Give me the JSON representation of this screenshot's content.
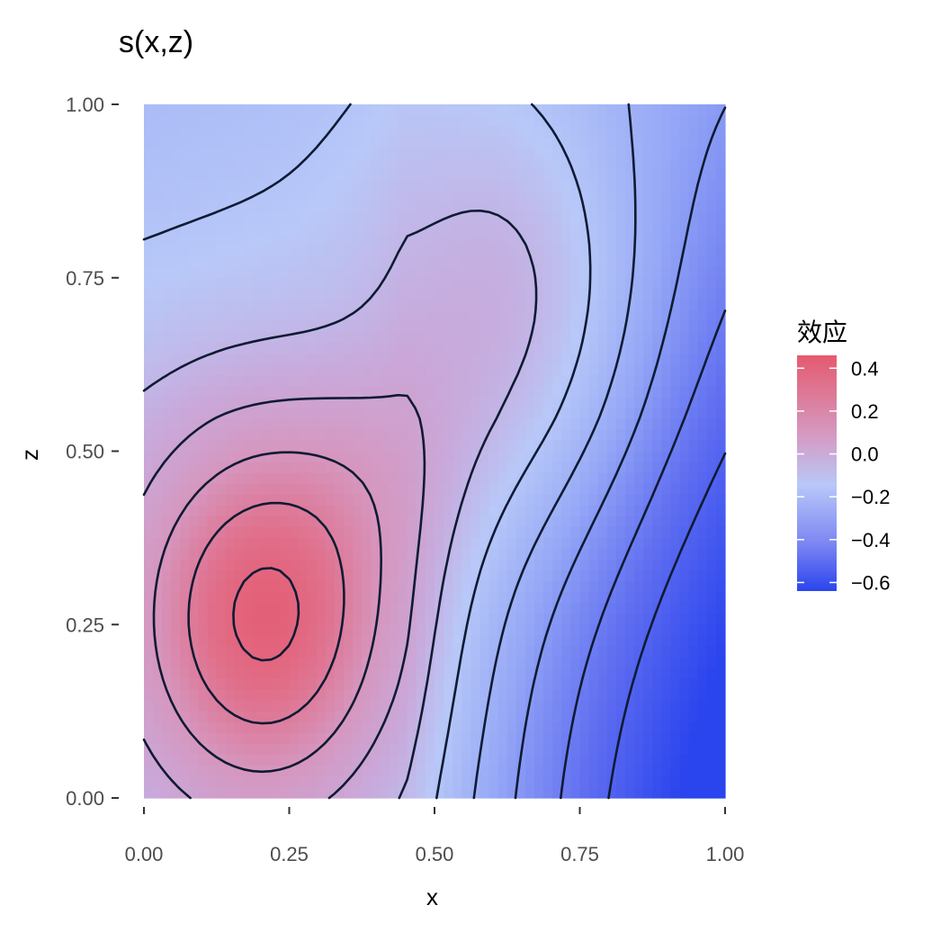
{
  "chart_data": {
    "type": "heatmap",
    "title": "s(x,z)",
    "xlabel": "x",
    "ylabel": "z",
    "xlim": [
      0,
      1
    ],
    "ylim": [
      0,
      1
    ],
    "x_ticks": [
      "0.00",
      "0.25",
      "0.50",
      "0.75",
      "1.00"
    ],
    "y_ticks": [
      "0.00",
      "0.25",
      "0.50",
      "0.75",
      "1.00"
    ],
    "x_tick_values": [
      0,
      0.25,
      0.5,
      0.75,
      1.0
    ],
    "y_tick_values": [
      0,
      0.25,
      0.5,
      0.75,
      1.0
    ],
    "legend": {
      "title": "效应",
      "position": "right",
      "labels": [
        "0.4",
        "0.2",
        "0.0",
        "−0.2",
        "−0.4",
        "−0.6"
      ],
      "values": [
        0.4,
        0.2,
        0.0,
        -0.2,
        -0.4,
        -0.6
      ],
      "range": [
        -0.64,
        0.46
      ]
    },
    "colors": {
      "high": "#e35d72",
      "mid": "#b8c8f8",
      "low": "#2a44ee"
    },
    "value_grid_description": "smooth surface; peak ~0.42 near (0.21,0.26), low ~-0.55 near (1,0)",
    "contour_levels": [
      -0.5,
      -0.4,
      -0.3,
      -0.2,
      -0.1,
      0.0,
      0.1,
      0.2,
      0.3,
      0.4
    ],
    "grid": false
  }
}
